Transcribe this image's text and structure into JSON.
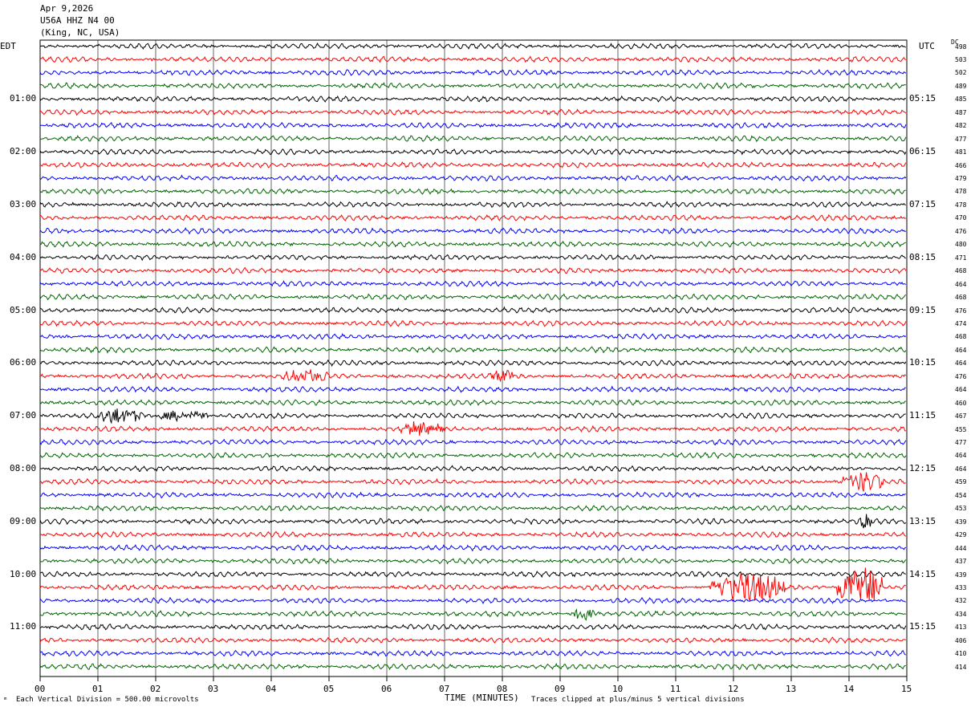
{
  "header": {
    "date": "Apr 9,2026",
    "station": "U56A HHZ N4 00",
    "location": "(King, NC, USA)"
  },
  "axes": {
    "left_tz": "EDT",
    "right_tz": "UTC",
    "dc_label": "DC",
    "xlabel": "TIME (MINUTES)"
  },
  "footer": {
    "division_note": "Each Vertical Division =  500.00 microvolts",
    "clip_note": "Traces clipped at plus/minus 5 vertical divisions"
  },
  "colors": {
    "trace_cycle": [
      "#000000",
      "#ff0000",
      "#0000ff",
      "#006400"
    ],
    "grid": "#000000"
  },
  "chart_data": {
    "type": "line",
    "title": "U56A HHZ N4 00 (King, NC, USA)",
    "xlabel": "TIME (MINUTES)",
    "xlim": [
      0,
      15
    ],
    "x_ticks": [
      "00",
      "01",
      "02",
      "03",
      "04",
      "05",
      "06",
      "07",
      "08",
      "09",
      "10",
      "11",
      "12",
      "13",
      "14",
      "15"
    ],
    "minutes_per_line": 15,
    "left_time_labels": [
      {
        "line": 0,
        "label": "EDT"
      },
      {
        "line": 4,
        "label": "01:00"
      },
      {
        "line": 8,
        "label": "02:00"
      },
      {
        "line": 12,
        "label": "03:00"
      },
      {
        "line": 16,
        "label": "04:00"
      },
      {
        "line": 20,
        "label": "05:00"
      },
      {
        "line": 24,
        "label": "06:00"
      },
      {
        "line": 28,
        "label": "07:00"
      },
      {
        "line": 32,
        "label": "08:00"
      },
      {
        "line": 36,
        "label": "09:00"
      },
      {
        "line": 40,
        "label": "10:00"
      },
      {
        "line": 44,
        "label": "11:00"
      }
    ],
    "right_time_labels": [
      {
        "line": 0,
        "label": "UTC"
      },
      {
        "line": 4,
        "label": "05:15"
      },
      {
        "line": 8,
        "label": "06:15"
      },
      {
        "line": 12,
        "label": "07:15"
      },
      {
        "line": 16,
        "label": "08:15"
      },
      {
        "line": 20,
        "label": "09:15"
      },
      {
        "line": 24,
        "label": "10:15"
      },
      {
        "line": 28,
        "label": "11:15"
      },
      {
        "line": 32,
        "label": "12:15"
      },
      {
        "line": 36,
        "label": "13:15"
      },
      {
        "line": 40,
        "label": "14:15"
      },
      {
        "line": 44,
        "label": "15:15"
      }
    ],
    "dc_offsets": [
      498,
      503,
      502,
      489,
      485,
      487,
      482,
      477,
      481,
      466,
      479,
      478,
      478,
      470,
      476,
      480,
      471,
      468,
      464,
      468,
      476,
      474,
      468,
      464,
      464,
      476,
      464,
      460,
      467,
      455,
      477,
      464,
      464,
      459,
      454,
      453,
      439,
      429,
      444,
      437,
      439,
      433,
      432,
      434,
      413,
      406,
      410,
      414
    ],
    "events": [
      {
        "line": 25,
        "start_min": 4.2,
        "end_min": 5.0,
        "amplitude": 1.5
      },
      {
        "line": 25,
        "start_min": 7.8,
        "end_min": 8.2,
        "amplitude": 1.6
      },
      {
        "line": 28,
        "start_min": 1.0,
        "end_min": 1.8,
        "amplitude": 1.7
      },
      {
        "line": 28,
        "start_min": 2.0,
        "end_min": 2.9,
        "amplitude": 1.1
      },
      {
        "line": 29,
        "start_min": 6.2,
        "end_min": 7.0,
        "amplitude": 1.4
      },
      {
        "line": 33,
        "start_min": 13.9,
        "end_min": 14.6,
        "amplitude": 2.2
      },
      {
        "line": 36,
        "start_min": 14.2,
        "end_min": 14.4,
        "amplitude": 2.4
      },
      {
        "line": 41,
        "start_min": 11.6,
        "end_min": 12.9,
        "amplitude": 3.4
      },
      {
        "line": 41,
        "start_min": 13.8,
        "end_min": 14.6,
        "amplitude": 4.6
      },
      {
        "line": 43,
        "start_min": 9.2,
        "end_min": 9.6,
        "amplitude": 1.3
      }
    ]
  }
}
